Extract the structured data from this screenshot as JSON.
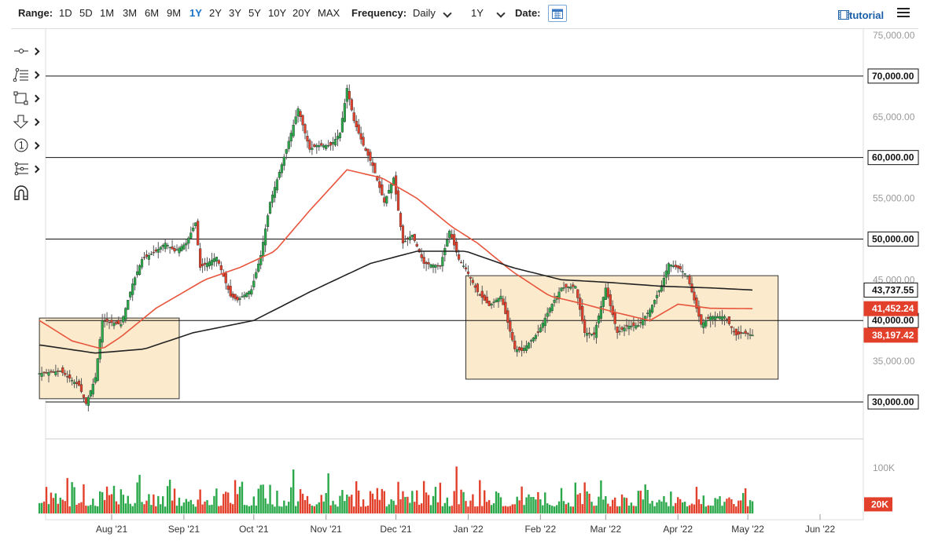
{
  "toolbar": {
    "range_label": "Range:",
    "ranges": [
      "1D",
      "5D",
      "1M",
      "3M",
      "6M",
      "9M",
      "1Y",
      "2Y",
      "3Y",
      "5Y",
      "10Y",
      "20Y",
      "MAX"
    ],
    "active_range": "1Y",
    "frequency_label": "Frequency:",
    "frequency_value": "Daily",
    "period_value": "1Y",
    "date_label": "Date:",
    "tutorial_label": "tutorial",
    "icons": [
      "calendar-icon",
      "film-icon",
      "hamburger-menu-icon"
    ]
  },
  "drawing_tools": [
    "line-tool-icon",
    "fib-tool-icon",
    "rectangle-tool-icon",
    "arrow-tool-icon",
    "number-tool-icon",
    "pitchfork-tool-icon",
    "magnet-tool-icon"
  ],
  "colors": {
    "up": "#2aa84a",
    "down": "#e3402b",
    "ma_fast": "#e8553d",
    "ma_slow": "#222222",
    "box_fill": "#fbeacb",
    "label_red": "#e3402b"
  },
  "chart_data": {
    "type": "candlestick",
    "title": "",
    "xlabel": "",
    "ylabel": "",
    "ylim": [
      25000,
      75000
    ],
    "y_ticks": [
      "75,000.00",
      "70,000.00",
      "65,000.00",
      "60,000.00",
      "55,000.00",
      "50,000.00",
      "45,000.00",
      "40,000.00",
      "35,000.00",
      "30,000.00"
    ],
    "x_ticks": [
      "Aug '21",
      "Sep '21",
      "Oct '21",
      "Nov '21",
      "Dec '21",
      "Jan '22",
      "Feb '22",
      "Mar '22",
      "Apr '22",
      "May '22",
      "Jun '22"
    ],
    "horizontal_levels": [
      {
        "value": 70000,
        "label": "70,000.00"
      },
      {
        "value": 60000,
        "label": "60,000.00"
      },
      {
        "value": 50000,
        "label": "50,000.00"
      },
      {
        "value": 40000,
        "label": "40,000.00"
      },
      {
        "value": 30000,
        "label": "30,000.00"
      }
    ],
    "price_labels": [
      {
        "value": 43737.55,
        "label": "43,737.55",
        "kind": "slow-ma"
      },
      {
        "value": 41452.24,
        "label": "41,452.24",
        "kind": "fast-ma"
      },
      {
        "value": 38197.42,
        "label": "38,197.42",
        "kind": "last-price"
      }
    ],
    "boxes": [
      {
        "from": "2021-07-01",
        "to": "2021-08-30",
        "low": 30400,
        "high": 40300
      },
      {
        "from": "2021-12-31",
        "to": "2022-05-14",
        "low": 32800,
        "high": 45500
      }
    ],
    "price_path": [
      [
        "2021-07-01",
        33500
      ],
      [
        "2021-07-10",
        33800
      ],
      [
        "2021-07-18",
        32000
      ],
      [
        "2021-07-21",
        29800
      ],
      [
        "2021-07-25",
        33000
      ],
      [
        "2021-07-28",
        40000
      ],
      [
        "2021-08-05",
        39500
      ],
      [
        "2021-08-10",
        44500
      ],
      [
        "2021-08-14",
        47500
      ],
      [
        "2021-08-20",
        48500
      ],
      [
        "2021-08-24",
        49500
      ],
      [
        "2021-08-28",
        48500
      ],
      [
        "2021-09-02",
        49500
      ],
      [
        "2021-09-06",
        52000
      ],
      [
        "2021-09-08",
        46500
      ],
      [
        "2021-09-15",
        47800
      ],
      [
        "2021-09-21",
        43000
      ],
      [
        "2021-09-24",
        42500
      ],
      [
        "2021-09-30",
        43800
      ],
      [
        "2021-10-04",
        48000
      ],
      [
        "2021-10-08",
        54500
      ],
      [
        "2021-10-15",
        61000
      ],
      [
        "2021-10-20",
        66000
      ],
      [
        "2021-10-25",
        61000
      ],
      [
        "2021-10-28",
        61500
      ],
      [
        "2021-11-03",
        61500
      ],
      [
        "2021-11-07",
        63000
      ],
      [
        "2021-11-10",
        68500
      ],
      [
        "2021-11-13",
        64500
      ],
      [
        "2021-11-17",
        61500
      ],
      [
        "2021-11-21",
        59000
      ],
      [
        "2021-11-26",
        54500
      ],
      [
        "2021-11-30",
        57500
      ],
      [
        "2021-12-04",
        49500
      ],
      [
        "2021-12-08",
        50500
      ],
      [
        "2021-12-13",
        47000
      ],
      [
        "2021-12-20",
        46700
      ],
      [
        "2021-12-24",
        51000
      ],
      [
        "2021-12-28",
        47500
      ],
      [
        "2021-12-31",
        46300
      ],
      [
        "2022-01-05",
        43500
      ],
      [
        "2022-01-10",
        41800
      ],
      [
        "2022-01-15",
        43000
      ],
      [
        "2022-01-21",
        36500
      ],
      [
        "2022-01-24",
        36300
      ],
      [
        "2022-01-31",
        38500
      ],
      [
        "2022-02-05",
        41500
      ],
      [
        "2022-02-10",
        44000
      ],
      [
        "2022-02-16",
        44200
      ],
      [
        "2022-02-20",
        38500
      ],
      [
        "2022-02-24",
        38300
      ],
      [
        "2022-03-01",
        44000
      ],
      [
        "2022-03-06",
        38500
      ],
      [
        "2022-03-10",
        39300
      ],
      [
        "2022-03-15",
        39400
      ],
      [
        "2022-03-20",
        41300
      ],
      [
        "2022-03-25",
        44300
      ],
      [
        "2022-03-28",
        47000
      ],
      [
        "2022-04-02",
        46300
      ],
      [
        "2022-04-05",
        45500
      ],
      [
        "2022-04-11",
        39500
      ],
      [
        "2022-04-15",
        40500
      ],
      [
        "2022-04-21",
        40500
      ],
      [
        "2022-04-26",
        38200
      ],
      [
        "2022-04-29",
        38500
      ],
      [
        "2022-05-03",
        38197
      ]
    ],
    "ma_fast": [
      [
        "2021-07-01",
        40000
      ],
      [
        "2021-07-15",
        37500
      ],
      [
        "2021-07-28",
        36500
      ],
      [
        "2021-08-05",
        38000
      ],
      [
        "2021-08-20",
        41500
      ],
      [
        "2021-09-10",
        45000
      ],
      [
        "2021-09-25",
        46500
      ],
      [
        "2021-10-10",
        48500
      ],
      [
        "2021-10-25",
        53500
      ],
      [
        "2021-11-10",
        58500
      ],
      [
        "2021-11-25",
        57500
      ],
      [
        "2021-12-10",
        55000
      ],
      [
        "2021-12-25",
        51500
      ],
      [
        "2022-01-05",
        49500
      ],
      [
        "2022-01-20",
        46000
      ],
      [
        "2022-02-05",
        43000
      ],
      [
        "2022-02-20",
        42000
      ],
      [
        "2022-03-05",
        41000
      ],
      [
        "2022-03-20",
        40000
      ],
      [
        "2022-04-01",
        42000
      ],
      [
        "2022-04-15",
        41500
      ],
      [
        "2022-05-03",
        41452
      ]
    ],
    "ma_slow": [
      [
        "2021-07-01",
        37000
      ],
      [
        "2021-07-25",
        36000
      ],
      [
        "2021-08-15",
        36500
      ],
      [
        "2021-09-05",
        38500
      ],
      [
        "2021-10-01",
        40000
      ],
      [
        "2021-10-25",
        43500
      ],
      [
        "2021-11-20",
        47000
      ],
      [
        "2021-12-10",
        48500
      ],
      [
        "2021-12-31",
        48500
      ],
      [
        "2022-01-20",
        46500
      ],
      [
        "2022-02-10",
        45000
      ],
      [
        "2022-03-01",
        44700
      ],
      [
        "2022-03-25",
        44200
      ],
      [
        "2022-04-15",
        44000
      ],
      [
        "2022-05-03",
        43738
      ]
    ],
    "volume": {
      "ylim": [
        0,
        150000
      ],
      "y_ticks": [
        "100K"
      ],
      "last_label": "20K"
    }
  }
}
